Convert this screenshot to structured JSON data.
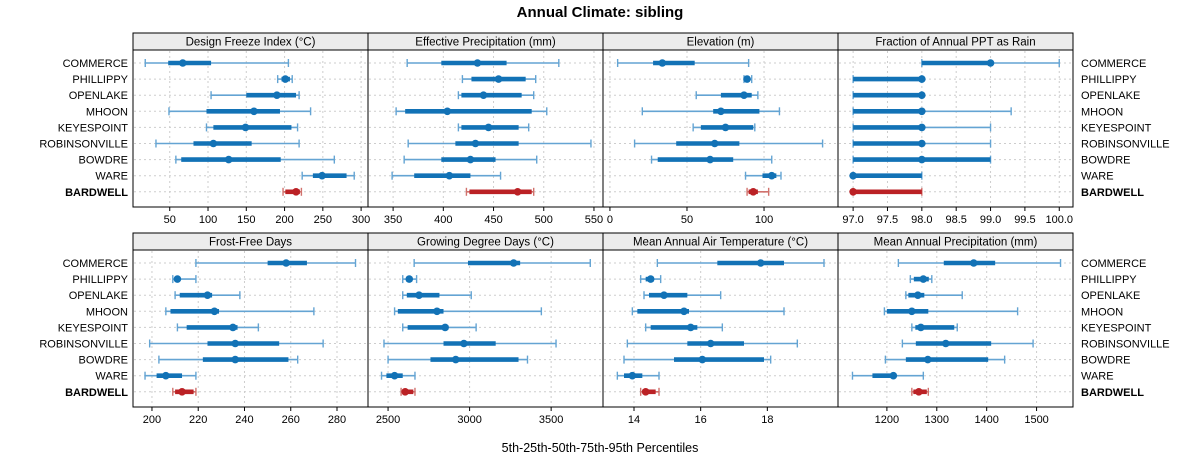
{
  "title": "Annual Climate: sibling",
  "caption": "5th-25th-50th-75th-95th Percentiles",
  "sites": [
    "COMMERCE",
    "PHILLIPPY",
    "OPENLAKE",
    "MHOON",
    "KEYESPOINT",
    "ROBINSONVILLE",
    "BOWDRE",
    "WARE",
    "BARDWELL"
  ],
  "highlight_site": "BARDWELL",
  "percentile_labels": [
    "5th",
    "25th",
    "50th",
    "75th",
    "95th"
  ],
  "colors": {
    "blue": "#1272b6",
    "blue_light": "#64a4d3",
    "red": "#bb2125",
    "red_light": "#d1726d",
    "grid": "#cdcdcd",
    "strip_bg": "#ececec",
    "panel_border": "#000000"
  },
  "chart_data": [
    {
      "type": "dotplot-interval",
      "title": "Design Freeze Index (°C)",
      "xlim": [
        2,
        309
      ],
      "ticks": [
        50,
        100,
        150,
        200,
        250,
        300
      ],
      "tick_labels": [
        "50",
        "100",
        "150",
        "200",
        "250",
        "300"
      ],
      "values": [
        [
          18,
          48,
          67,
          104,
          205
        ],
        [
          191,
          196,
          201,
          207,
          210
        ],
        [
          104,
          150,
          190,
          215,
          219
        ],
        [
          49,
          98,
          160,
          194,
          234
        ],
        [
          98,
          107,
          149,
          209,
          217
        ],
        [
          32,
          81,
          107,
          157,
          219
        ],
        [
          58,
          65,
          127,
          195,
          265
        ],
        [
          223,
          237,
          249,
          281,
          291
        ],
        [
          198,
          201,
          215,
          220,
          222
        ]
      ]
    },
    {
      "type": "dotplot-interval",
      "title": "Effective Precipitation (mm)",
      "xlim": [
        325,
        559
      ],
      "ticks": [
        350,
        400,
        450,
        500,
        550
      ],
      "tick_labels": [
        "350",
        "400",
        "450",
        "500",
        "550"
      ],
      "values": [
        [
          364,
          398,
          434,
          463,
          515
        ],
        [
          419,
          428,
          455,
          482,
          492
        ],
        [
          415,
          418,
          440,
          478,
          490
        ],
        [
          353,
          362,
          404,
          488,
          503
        ],
        [
          415,
          418,
          445,
          475,
          485
        ],
        [
          365,
          412,
          432,
          475,
          547
        ],
        [
          361,
          398,
          427,
          452,
          493
        ],
        [
          349,
          371,
          406,
          427,
          457
        ],
        [
          423,
          426,
          474,
          488,
          490
        ]
      ]
    },
    {
      "type": "dotplot-interval",
      "title": "Elevation (m)",
      "xlim": [
        -4.5,
        148
      ],
      "ticks": [
        0,
        50,
        100
      ],
      "tick_labels": [
        "0",
        "50",
        "100"
      ],
      "values": [
        [
          5,
          28,
          34,
          55,
          90
        ],
        [
          87,
          88,
          89,
          90,
          92
        ],
        [
          56,
          72,
          87,
          92,
          96
        ],
        [
          21,
          67,
          72,
          97,
          110
        ],
        [
          54,
          59,
          75,
          93,
          94
        ],
        [
          16,
          43,
          68,
          84,
          138
        ],
        [
          27,
          31,
          65,
          80,
          105
        ],
        [
          88,
          99,
          105,
          108,
          111
        ],
        [
          89,
          90,
          93,
          96,
          103
        ]
      ]
    },
    {
      "type": "dotplot-interval",
      "title": "Fraction of Annual PPT as Rain",
      "xlim": [
        96.78,
        100.2
      ],
      "ticks": [
        97.0,
        97.5,
        98.0,
        98.5,
        99.0,
        99.5,
        100.0
      ],
      "tick_labels": [
        "97.0",
        "97.5",
        "98.0",
        "98.5",
        "99.0",
        "99.5",
        "100.0"
      ],
      "values": [
        [
          98,
          98,
          99,
          99,
          100
        ],
        [
          97,
          97,
          98,
          98,
          98
        ],
        [
          97,
          97,
          98,
          98,
          98
        ],
        [
          97,
          97,
          98,
          98,
          99.3
        ],
        [
          97,
          97,
          98,
          98,
          99
        ],
        [
          97,
          97,
          98,
          98,
          99
        ],
        [
          97,
          97,
          98,
          99,
          99
        ],
        [
          97,
          97,
          97,
          98,
          98
        ],
        [
          97,
          97,
          97,
          98,
          98
        ]
      ]
    },
    {
      "type": "dotplot-interval",
      "title": "Frost-Free Days",
      "xlim": [
        191.8,
        293.4
      ],
      "ticks": [
        200,
        220,
        240,
        260,
        280
      ],
      "tick_labels": [
        "200",
        "220",
        "240",
        "260",
        "280"
      ],
      "values": [
        [
          219,
          250,
          258,
          267,
          288
        ],
        [
          209,
          210,
          211,
          212,
          219
        ],
        [
          210,
          212,
          224,
          226,
          238
        ],
        [
          206,
          208,
          227,
          229,
          270
        ],
        [
          211,
          215,
          235,
          237,
          246
        ],
        [
          199,
          224,
          236,
          255,
          274
        ],
        [
          203,
          222,
          236,
          259,
          263
        ],
        [
          197,
          202,
          206,
          213,
          219
        ],
        [
          209,
          210,
          213,
          218,
          219
        ]
      ]
    },
    {
      "type": "dotplot-interval",
      "title": "Growing Degree Days (°C)",
      "xlim": [
        2377,
        3818
      ],
      "ticks": [
        2500,
        3000,
        3500
      ],
      "tick_labels": [
        "2500",
        "3000",
        "3500"
      ],
      "values": [
        [
          2660,
          2990,
          3270,
          3310,
          3740
        ],
        [
          2590,
          2610,
          2630,
          2650,
          2675
        ],
        [
          2590,
          2615,
          2690,
          2815,
          3010
        ],
        [
          2540,
          2560,
          2800,
          2840,
          3440
        ],
        [
          2590,
          2620,
          2850,
          2870,
          3040
        ],
        [
          2475,
          2840,
          2965,
          3160,
          3530
        ],
        [
          2500,
          2760,
          2915,
          3300,
          3355
        ],
        [
          2460,
          2490,
          2540,
          2590,
          2665
        ],
        [
          2580,
          2590,
          2605,
          2655,
          2665
        ]
      ]
    },
    {
      "type": "dotplot-interval",
      "title": "Mean Annual Air Temperature (°C)",
      "xlim": [
        13.07,
        20.12
      ],
      "ticks": [
        14,
        16,
        18
      ],
      "tick_labels": [
        "14",
        "16",
        "18"
      ],
      "values": [
        [
          14.7,
          16.5,
          17.8,
          18.5,
          19.7
        ],
        [
          14.2,
          14.35,
          14.5,
          14.6,
          14.8
        ],
        [
          14.3,
          14.45,
          14.9,
          15.6,
          16.6
        ],
        [
          13.95,
          14.1,
          15.5,
          15.65,
          18.5
        ],
        [
          14.35,
          14.5,
          15.7,
          15.9,
          16.65
        ],
        [
          13.8,
          15.6,
          16.3,
          17.3,
          18.9
        ],
        [
          13.7,
          15.2,
          16.05,
          17.9,
          18.1
        ],
        [
          13.5,
          13.7,
          13.95,
          14.25,
          14.75
        ],
        [
          14.2,
          14.25,
          14.35,
          14.65,
          14.75
        ]
      ]
    },
    {
      "type": "dotplot-interval",
      "title": "Mean Annual Precipitation (mm)",
      "xlim": [
        1102,
        1573
      ],
      "ticks": [
        1200,
        1300,
        1400,
        1500
      ],
      "tick_labels": [
        "1200",
        "1300",
        "1400",
        "1500"
      ],
      "values": [
        [
          1223,
          1314,
          1374,
          1417,
          1548
        ],
        [
          1247,
          1254,
          1273,
          1284,
          1290
        ],
        [
          1238,
          1243,
          1262,
          1275,
          1351
        ],
        [
          1195,
          1200,
          1250,
          1283,
          1462
        ],
        [
          1250,
          1257,
          1268,
          1335,
          1341
        ],
        [
          1231,
          1258,
          1318,
          1409,
          1493
        ],
        [
          1197,
          1238,
          1282,
          1403,
          1436
        ],
        [
          1131,
          1171,
          1213,
          1218,
          1273
        ],
        [
          1250,
          1253,
          1264,
          1280,
          1283
        ]
      ]
    }
  ]
}
